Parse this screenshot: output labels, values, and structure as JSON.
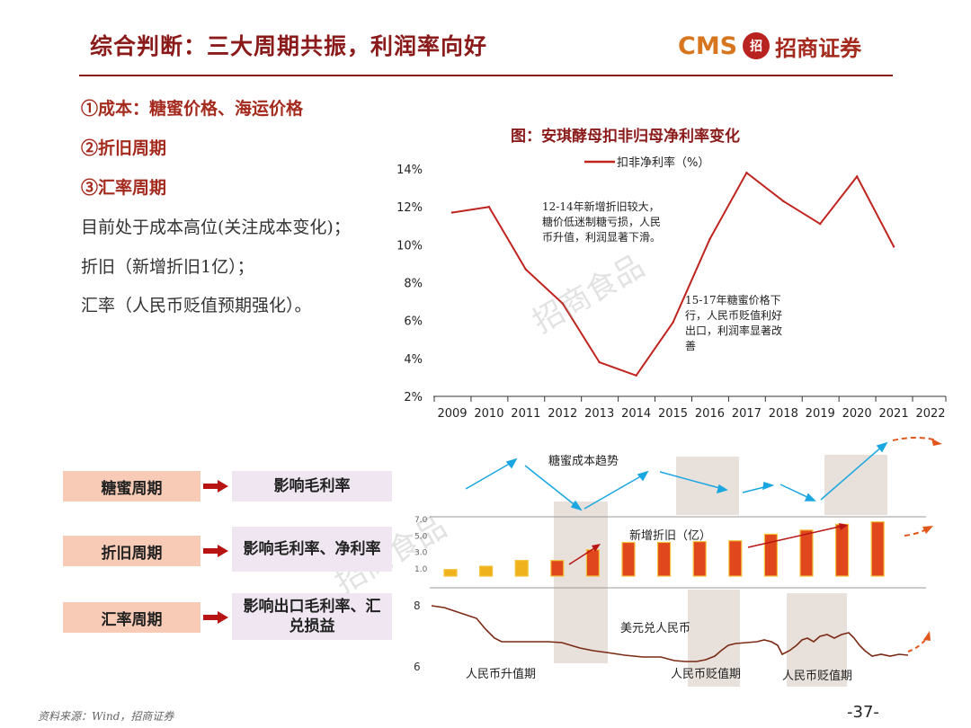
{
  "header": {
    "title": "综合判断：三大周期共振，利润率向好",
    "logo_latin": "CMS",
    "logo_mark": "招",
    "logo_cn": "招商证券"
  },
  "left": {
    "points": [
      "①成本：糖蜜价格、海运价格",
      "②折旧周期",
      "③汇率周期"
    ],
    "lines": [
      "目前处于成本高位(关注成本变化)；",
      "折旧（新增折旧1亿）；",
      "汇率（人民币贬值预期强化）。"
    ]
  },
  "watermark": "招商食品",
  "colors": {
    "brand": "#8b1a1a",
    "line": "#c0241e",
    "bar": "#e0471c",
    "arrow_blue": "#1aa6e0",
    "shade": "#e8e1db"
  },
  "chart_data": [
    {
      "type": "line",
      "title": "图：安琪酵母扣非归母净利率变化",
      "legend": "扣非净利率（%）",
      "x": [
        2009,
        2010,
        2011,
        2012,
        2013,
        2014,
        2015,
        2016,
        2017,
        2018,
        2019,
        2020,
        2021,
        2022
      ],
      "x_labels": [
        "2009",
        "2010",
        "2011",
        "2012",
        "2013",
        "2014",
        "2015",
        "2016",
        "2017",
        "2018",
        "2019",
        "2020",
        "2021",
        "2022"
      ],
      "series": [
        {
          "name": "扣非净利率（%）",
          "x": [
            2009,
            2010,
            2011,
            2012,
            2013,
            2014,
            2015,
            2016,
            2017,
            2018,
            2019,
            2020,
            2021
          ],
          "values": [
            11.7,
            12.0,
            8.7,
            6.9,
            3.8,
            3.1,
            5.9,
            10.3,
            13.8,
            12.3,
            11.1,
            13.6,
            9.9
          ]
        }
      ],
      "ylim": [
        2,
        14
      ],
      "y_ticks": [
        2,
        4,
        6,
        8,
        10,
        12,
        14
      ],
      "y_tick_labels": [
        "2%",
        "4%",
        "6%",
        "8%",
        "10%",
        "12%",
        "14%"
      ],
      "annotations": [
        "12-14年新增折旧较大，糖价低迷制糖亏损，人民币升值，利润显著下滑。",
        "15-17年糖蜜价格下行，人民币贬值利好出口，利润率显著改善"
      ]
    },
    {
      "type": "line",
      "title": "糖蜜成本趋势",
      "description_only": true
    },
    {
      "type": "bar",
      "title": "新增折旧（亿）",
      "values": [
        0.8,
        1.2,
        1.9,
        1.9,
        3.2,
        4.1,
        4.1,
        4.2,
        4.3,
        5.1,
        5.6,
        6.3,
        6.6
      ],
      "ylim": [
        0,
        7
      ],
      "y_tick_labels": [
        "7.0",
        "5.0",
        "3.0",
        "1.0"
      ]
    },
    {
      "type": "line",
      "title": "美元兑人民币",
      "y_tick_labels": [
        "8",
        "6"
      ],
      "ylim": [
        6,
        8
      ],
      "period_labels": [
        "人民币升值期",
        "人民币贬值期",
        "人民币贬值期"
      ]
    }
  ],
  "cycles": [
    {
      "name": "糖蜜周期",
      "effect": "影响毛利率"
    },
    {
      "name": "折旧周期",
      "effect": "影响毛利率、净利率"
    },
    {
      "name": "汇率周期",
      "effect": "影响出口毛利率、汇兑损益"
    }
  ],
  "footer": {
    "source": "资料来源：Wind，招商证券",
    "page": "-37-"
  }
}
